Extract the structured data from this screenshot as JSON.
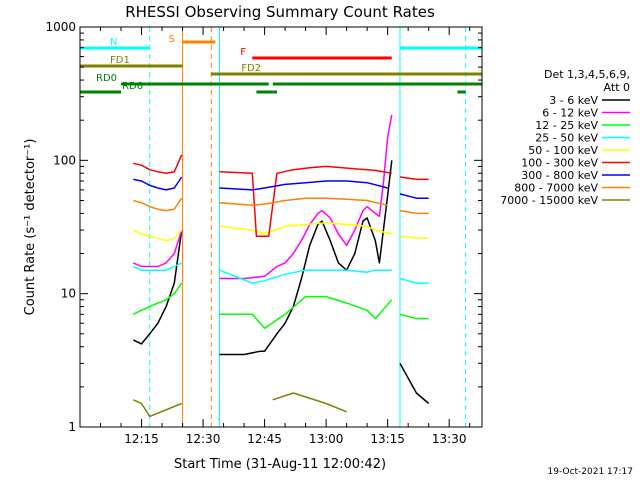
{
  "chart_data": {
    "type": "line",
    "title": "RHESSI Observing Summary Count Rates",
    "xlabel": "Start Time (31-Aug-11 12:00:42)",
    "ylabel": "Count Rate (s⁻¹ detector⁻¹)",
    "yscale": "log",
    "ylim": [
      1,
      1000
    ],
    "xlim_minutes": [
      0,
      98
    ],
    "xticks": [
      {
        "label": "12:15",
        "minutes": 15
      },
      {
        "label": "12:30",
        "minutes": 30
      },
      {
        "label": "12:45",
        "minutes": 45
      },
      {
        "label": "13:00",
        "minutes": 60
      },
      {
        "label": "13:15",
        "minutes": 75
      },
      {
        "label": "13:30",
        "minutes": 90
      }
    ],
    "yticks": [
      {
        "label": "1",
        "value": 1
      },
      {
        "label": "10",
        "value": 10
      },
      {
        "label": "100",
        "value": 100
      },
      {
        "label": "1000",
        "value": 1000
      }
    ],
    "legend_header": [
      "Det 1,3,4,5,6,9,",
      "Att 0"
    ],
    "legend_position": "right",
    "timestamp": "19-Oct-2021 17:17",
    "flag_bars": [
      {
        "label": "N",
        "color": "#00ffff",
        "segments": [
          [
            0,
            17
          ],
          [
            78,
            98
          ]
        ]
      },
      {
        "label": "S",
        "color": "#ff8000",
        "segments": [
          [
            25,
            33
          ]
        ]
      },
      {
        "label": "F",
        "color": "#ff0000",
        "segments": [
          [
            42,
            76
          ]
        ]
      },
      {
        "label": "FD1",
        "color": "#808000",
        "segments": [
          [
            0,
            25
          ]
        ]
      },
      {
        "label": "FD2",
        "color": "#808000",
        "segments": [
          [
            32,
            98
          ]
        ]
      },
      {
        "label": "RD0",
        "color": "#008000",
        "segments": [
          [
            10,
            46
          ],
          [
            47,
            98
          ]
        ]
      },
      {
        "label": "RD6",
        "color": "#008000",
        "segments": [
          [
            0,
            10
          ],
          [
            43,
            47
          ],
          [
            47,
            48
          ],
          [
            92,
            94
          ]
        ]
      }
    ],
    "vertical_markers": [
      {
        "minutes": 17,
        "color": "#00ffff",
        "style": "dashed"
      },
      {
        "minutes": 25,
        "color": "#ff8000",
        "style": "solid"
      },
      {
        "minutes": 32,
        "color": "#ff8000",
        "style": "dashed"
      },
      {
        "minutes": 34,
        "color": "#00ffff",
        "style": "solid"
      },
      {
        "minutes": 78,
        "color": "#00ffff",
        "style": "solid"
      },
      {
        "minutes": 94,
        "color": "#00ffff",
        "style": "dashed"
      }
    ],
    "gaps_minutes": [
      [
        25.5,
        34
      ],
      [
        76,
        78
      ]
    ],
    "series": [
      {
        "name": "3 - 6 keV",
        "color": "#000000",
        "points": [
          [
            13,
            4.5
          ],
          [
            15,
            4.2
          ],
          [
            17,
            5
          ],
          [
            19,
            6
          ],
          [
            21,
            8
          ],
          [
            23,
            12
          ],
          [
            24.8,
            30
          ],
          [
            34,
            3.5
          ],
          [
            40,
            3.5
          ],
          [
            44,
            3.7
          ],
          [
            45,
            3.7
          ],
          [
            48,
            5
          ],
          [
            50,
            6
          ],
          [
            52,
            8
          ],
          [
            54,
            13
          ],
          [
            56,
            23
          ],
          [
            58,
            33
          ],
          [
            59,
            35
          ],
          [
            61,
            25
          ],
          [
            63,
            17
          ],
          [
            65,
            15
          ],
          [
            67,
            20
          ],
          [
            69,
            35
          ],
          [
            70,
            37
          ],
          [
            72,
            25
          ],
          [
            73,
            17
          ],
          [
            75,
            55
          ],
          [
            76,
            100
          ],
          [
            78,
            3
          ],
          [
            82,
            1.8
          ],
          [
            85,
            1.5
          ]
        ]
      },
      {
        "name": "6 - 12 keV",
        "color": "#ff00ff",
        "points": [
          [
            13,
            17
          ],
          [
            15,
            16
          ],
          [
            17,
            16
          ],
          [
            19,
            16
          ],
          [
            21,
            17
          ],
          [
            23,
            20
          ],
          [
            24.8,
            30
          ],
          [
            34,
            13
          ],
          [
            40,
            13
          ],
          [
            45,
            13.5
          ],
          [
            48,
            16
          ],
          [
            50,
            17
          ],
          [
            52,
            20
          ],
          [
            54,
            25
          ],
          [
            56,
            33
          ],
          [
            58,
            40
          ],
          [
            59,
            42
          ],
          [
            61,
            37
          ],
          [
            63,
            28
          ],
          [
            65,
            23
          ],
          [
            67,
            30
          ],
          [
            69,
            42
          ],
          [
            70,
            45
          ],
          [
            72,
            40
          ],
          [
            73,
            38
          ],
          [
            74,
            70
          ],
          [
            75,
            150
          ],
          [
            76,
            220
          ]
        ]
      },
      {
        "name": "12 - 25 keV",
        "color": "#00ff00",
        "points": [
          [
            13,
            7
          ],
          [
            15,
            7.5
          ],
          [
            17,
            8
          ],
          [
            19,
            8.5
          ],
          [
            21,
            9
          ],
          [
            23,
            10
          ],
          [
            24.8,
            12
          ],
          [
            34,
            7
          ],
          [
            42,
            7
          ],
          [
            45,
            5.5
          ],
          [
            50,
            7
          ],
          [
            55,
            9.5
          ],
          [
            60,
            9.5
          ],
          [
            65,
            8.5
          ],
          [
            70,
            7.5
          ],
          [
            72,
            6.5
          ],
          [
            76,
            9
          ],
          [
            78,
            7
          ],
          [
            82,
            6.5
          ],
          [
            85,
            6.5
          ]
        ]
      },
      {
        "name": "25 - 50 keV",
        "color": "#00ffff",
        "points": [
          [
            13,
            16
          ],
          [
            15,
            15
          ],
          [
            17,
            15
          ],
          [
            19,
            15
          ],
          [
            21,
            15
          ],
          [
            23,
            16
          ],
          [
            24.8,
            17
          ],
          [
            34,
            15
          ],
          [
            42,
            12
          ],
          [
            45,
            12.5
          ],
          [
            50,
            14
          ],
          [
            55,
            15
          ],
          [
            60,
            15
          ],
          [
            65,
            15
          ],
          [
            70,
            14.5
          ],
          [
            72,
            15
          ],
          [
            76,
            15
          ],
          [
            78,
            13
          ],
          [
            82,
            12
          ],
          [
            85,
            12
          ]
        ]
      },
      {
        "name": "50 - 100 keV",
        "color": "#ffff00",
        "points": [
          [
            13,
            30
          ],
          [
            15,
            28
          ],
          [
            17,
            27
          ],
          [
            19,
            26
          ],
          [
            21,
            25
          ],
          [
            23,
            26
          ],
          [
            24.8,
            30
          ],
          [
            34,
            32
          ],
          [
            42,
            30
          ],
          [
            45,
            28
          ],
          [
            50,
            32
          ],
          [
            55,
            33
          ],
          [
            60,
            34
          ],
          [
            65,
            33
          ],
          [
            70,
            32
          ],
          [
            72,
            30
          ],
          [
            76,
            28
          ],
          [
            78,
            27
          ],
          [
            82,
            26
          ],
          [
            85,
            26
          ]
        ]
      },
      {
        "name": "100 - 300 keV",
        "color": "#ff0000",
        "points": [
          [
            13,
            95
          ],
          [
            15,
            92
          ],
          [
            17,
            85
          ],
          [
            19,
            82
          ],
          [
            21,
            80
          ],
          [
            23,
            82
          ],
          [
            24.8,
            110
          ],
          [
            34,
            82
          ],
          [
            42,
            80
          ],
          [
            43,
            27
          ],
          [
            46,
            27
          ],
          [
            48,
            80
          ],
          [
            52,
            85
          ],
          [
            56,
            88
          ],
          [
            60,
            90
          ],
          [
            64,
            88
          ],
          [
            68,
            86
          ],
          [
            72,
            84
          ],
          [
            76,
            80
          ],
          [
            78,
            75
          ],
          [
            82,
            72
          ],
          [
            85,
            72
          ]
        ]
      },
      {
        "name": "300 - 800 keV",
        "color": "#0000ff",
        "points": [
          [
            13,
            72
          ],
          [
            15,
            70
          ],
          [
            17,
            65
          ],
          [
            19,
            62
          ],
          [
            21,
            60
          ],
          [
            23,
            62
          ],
          [
            24.8,
            75
          ],
          [
            34,
            62
          ],
          [
            42,
            60
          ],
          [
            45,
            62
          ],
          [
            50,
            66
          ],
          [
            55,
            68
          ],
          [
            60,
            70
          ],
          [
            65,
            70
          ],
          [
            70,
            68
          ],
          [
            75,
            62
          ],
          [
            78,
            56
          ],
          [
            82,
            52
          ],
          [
            85,
            52
          ]
        ]
      },
      {
        "name": "800 - 7000 keV",
        "color": "#ff8000",
        "points": [
          [
            13,
            50
          ],
          [
            15,
            48
          ],
          [
            17,
            45
          ],
          [
            19,
            43
          ],
          [
            21,
            42
          ],
          [
            23,
            43
          ],
          [
            24.8,
            52
          ],
          [
            34,
            48
          ],
          [
            42,
            46
          ],
          [
            45,
            47
          ],
          [
            50,
            50
          ],
          [
            55,
            52
          ],
          [
            60,
            52
          ],
          [
            65,
            51
          ],
          [
            70,
            50
          ],
          [
            75,
            46
          ],
          [
            78,
            42
          ],
          [
            82,
            40
          ],
          [
            85,
            40
          ]
        ]
      },
      {
        "name": "7000 - 15000 keV",
        "color": "#808000",
        "points": [
          [
            13,
            1.6
          ],
          [
            15,
            1.5
          ],
          [
            17,
            1.2
          ],
          [
            24.8,
            1.5
          ],
          [
            47,
            1.6
          ],
          [
            52,
            1.8
          ],
          [
            60,
            1.5
          ],
          [
            65,
            1.3
          ]
        ]
      }
    ]
  }
}
